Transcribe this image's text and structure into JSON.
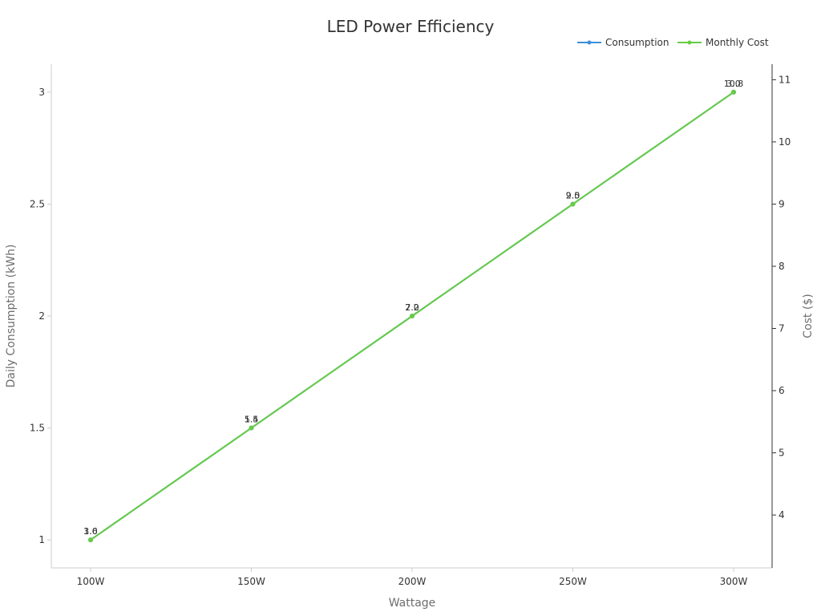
{
  "chart_data": {
    "type": "line",
    "title": "LED Power Efficiency",
    "categories": [
      "100W",
      "150W",
      "200W",
      "250W",
      "300W"
    ],
    "xlabel": "Wattage",
    "ylabel": "Daily Consumption (kWh)",
    "y2label": "Cost ($)",
    "ylim": [
      0.875,
      3.125
    ],
    "y2lim": [
      3.15,
      11.25
    ],
    "yticks": [
      "1",
      "1.5",
      "2",
      "2.5",
      "3"
    ],
    "y2ticks": [
      "4",
      "5",
      "6",
      "7",
      "8",
      "9",
      "10",
      "11"
    ],
    "legend_position": "top-right",
    "series": [
      {
        "name": "Consumption",
        "axis": "left",
        "color": "#3b8fdb",
        "values": [
          1.0,
          1.5,
          2.0,
          2.5,
          3.0
        ],
        "labels": [
          "1.0",
          "1.5",
          "2.0",
          "2.5",
          "3.0"
        ]
      },
      {
        "name": "Monthly Cost",
        "axis": "right",
        "color": "#66cc44",
        "values": [
          3.6,
          5.4,
          7.2,
          9.0,
          10.8
        ],
        "labels": [
          "3.6",
          "5.4",
          "7.2",
          "9.0",
          "10.8"
        ]
      }
    ]
  }
}
